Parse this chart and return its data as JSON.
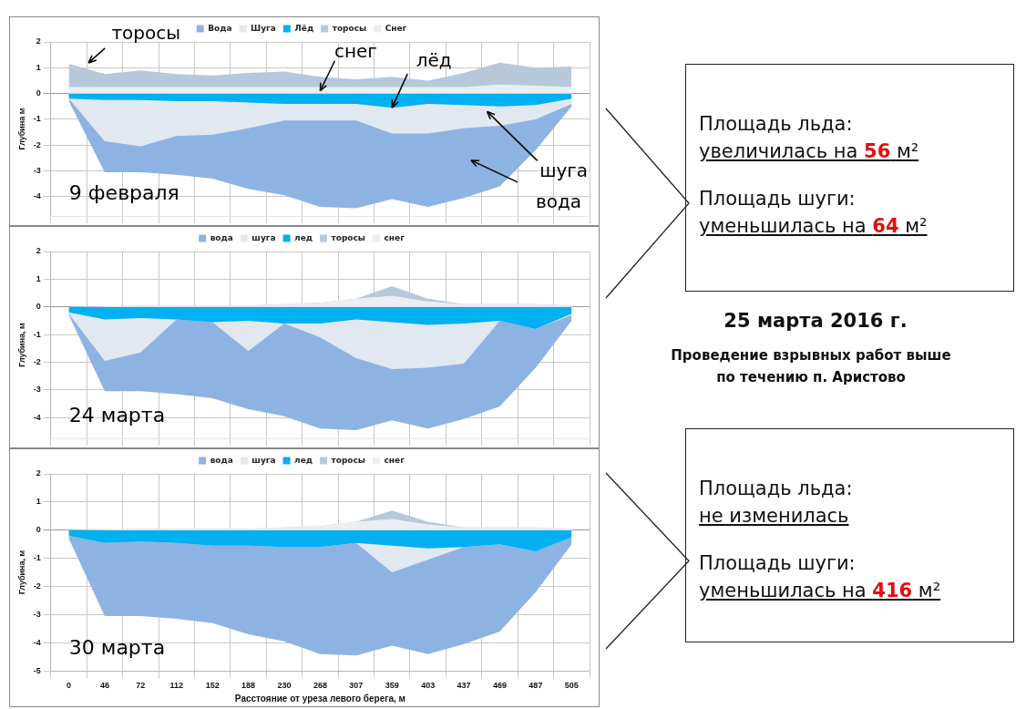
{
  "chart_data": [
    {
      "type": "area",
      "ylabel": "Глубина м",
      "categories": [
        "0",
        "46",
        "72",
        "112",
        "152",
        "188",
        "230",
        "268",
        "307",
        "359",
        "403",
        "437",
        "469",
        "487",
        "505"
      ],
      "ylim": [
        -4.75,
        2
      ],
      "yticks": [
        -4,
        -3,
        -2,
        -1,
        0,
        1,
        2
      ],
      "grid": true,
      "legend": "top",
      "tick_labels": "y",
      "series": [
        {
          "name": "Вода",
          "color": "#8db3e2",
          "values": [
            -0.3,
            -3.05,
            -3.05,
            -3.15,
            -3.3,
            -3.7,
            -3.95,
            -4.4,
            -4.45,
            -4.1,
            -4.4,
            -4.05,
            -3.6,
            -2.2,
            -0.5
          ]
        },
        {
          "name": "Шуга",
          "color": "#e2e8ef",
          "values": [
            -0.2,
            -1.85,
            -2.05,
            -1.65,
            -1.6,
            -1.35,
            -1.05,
            -1.05,
            -1.05,
            -1.55,
            -1.55,
            -1.35,
            -1.25,
            -1.0,
            -0.4
          ]
        },
        {
          "name": "Лёд",
          "color": "#00b0f0",
          "values": [
            -0.2,
            -0.25,
            -0.25,
            -0.3,
            -0.3,
            -0.35,
            -0.4,
            -0.4,
            -0.4,
            -0.55,
            -0.4,
            -0.45,
            -0.5,
            -0.45,
            -0.2
          ]
        },
        {
          "name": "торосы",
          "color": "#b8c8db",
          "values": [
            1.15,
            0.75,
            0.9,
            0.75,
            0.7,
            0.8,
            0.85,
            0.65,
            0.55,
            0.65,
            0.5,
            0.8,
            1.2,
            1.0,
            1.05
          ]
        },
        {
          "name": "Снег",
          "color": "#eceef1",
          "values": [
            0.25,
            0.25,
            0.25,
            0.25,
            0.25,
            0.25,
            0.25,
            0.25,
            0.25,
            0.25,
            0.25,
            0.25,
            0.35,
            0.3,
            0.25
          ]
        }
      ],
      "annotations": [
        "торосы",
        {
          "text": "снег",
          "x": "268",
          "y": 0.1
        },
        {
          "text": "лёд",
          "x": "359",
          "y": -0.55
        },
        "шуга",
        "вода",
        "9 февраля"
      ]
    },
    {
      "type": "area",
      "ylabel": "Глубина, м",
      "categories": [
        "0",
        "46",
        "72",
        "112",
        "152",
        "188",
        "230",
        "268",
        "307",
        "359",
        "403",
        "437",
        "469",
        "487",
        "505"
      ],
      "ylim": [
        -4.75,
        2
      ],
      "yticks": [
        -4,
        -3,
        -2,
        -1,
        0,
        1,
        2
      ],
      "grid": true,
      "legend": "top",
      "tick_labels": "y",
      "series": [
        {
          "name": "вода",
          "color": "#8db3e2",
          "values": [
            -0.3,
            -3.05,
            -3.05,
            -3.15,
            -3.3,
            -3.7,
            -3.95,
            -4.4,
            -4.45,
            -4.1,
            -4.4,
            -4.05,
            -3.6,
            -2.2,
            -0.5
          ]
        },
        {
          "name": "шуга",
          "color": "#e2e8ef",
          "values": [
            -0.25,
            -1.95,
            -1.65,
            -0.45,
            -0.55,
            -1.6,
            -0.6,
            -1.1,
            -1.85,
            -2.25,
            -2.2,
            -2.05,
            -0.5,
            -0.8,
            -0.3
          ]
        },
        {
          "name": "лед",
          "color": "#00b0f0",
          "values": [
            -0.2,
            -0.45,
            -0.4,
            -0.45,
            -0.55,
            -0.5,
            -0.6,
            -0.6,
            -0.45,
            -0.55,
            -0.65,
            -0.6,
            -0.5,
            -0.8,
            -0.25
          ]
        },
        {
          "name": "торосы",
          "color": "#b8c8db",
          "values": [
            0,
            0.02,
            0.05,
            0.05,
            0.05,
            0.05,
            0.1,
            0.15,
            0.3,
            0.75,
            0.3,
            0.1,
            0.1,
            0.1,
            0.05
          ]
        },
        {
          "name": "снег",
          "color": "#eceef1",
          "values": [
            0,
            0.02,
            0.05,
            0.05,
            0.05,
            0.05,
            0.1,
            0.15,
            0.3,
            0.4,
            0.2,
            0.1,
            0.1,
            0.1,
            0.05
          ]
        }
      ],
      "annotations": [
        "24 марта"
      ]
    },
    {
      "type": "area",
      "xlabel": "Расстояние от уреза левого берега, м",
      "ylabel": "Глубина, м",
      "categories": [
        "0",
        "46",
        "72",
        "112",
        "152",
        "188",
        "230",
        "268",
        "307",
        "359",
        "403",
        "437",
        "469",
        "487",
        "505"
      ],
      "ylim": [
        -5,
        2
      ],
      "yticks": [
        -5,
        -4,
        -3,
        -2,
        -1,
        0,
        1,
        2
      ],
      "grid": true,
      "legend": "top",
      "series": [
        {
          "name": "вода",
          "color": "#8db3e2",
          "values": [
            -0.3,
            -3.05,
            -3.05,
            -3.15,
            -3.3,
            -3.7,
            -3.95,
            -4.4,
            -4.45,
            -4.1,
            -4.4,
            -4.05,
            -3.6,
            -2.2,
            -0.5
          ]
        },
        {
          "name": "шуга",
          "color": "#e2e8ef",
          "values": [
            -0.2,
            -0.45,
            -0.4,
            -0.45,
            -0.55,
            -0.55,
            -0.6,
            -0.6,
            -0.45,
            -1.5,
            -1.05,
            -0.6,
            -0.5,
            -0.75,
            -0.25
          ]
        },
        {
          "name": "лед",
          "color": "#00b0f0",
          "values": [
            -0.2,
            -0.45,
            -0.4,
            -0.45,
            -0.55,
            -0.55,
            -0.6,
            -0.6,
            -0.45,
            -0.55,
            -0.65,
            -0.6,
            -0.5,
            -0.75,
            -0.25
          ]
        },
        {
          "name": "торосы",
          "color": "#b8c8db",
          "values": [
            0,
            0.02,
            0.05,
            0.05,
            0.05,
            0.05,
            0.1,
            0.15,
            0.3,
            0.7,
            0.3,
            0.1,
            0.1,
            0.1,
            0.05
          ]
        },
        {
          "name": "снег",
          "color": "#eceef1",
          "values": [
            0,
            0.02,
            0.05,
            0.05,
            0.05,
            0.05,
            0.1,
            0.15,
            0.3,
            0.4,
            0.2,
            0.1,
            0.1,
            0.1,
            0.05
          ]
        }
      ],
      "annotations": [
        "30 марта"
      ]
    },
    {
      "type": "other",
      "annotations": [
        "Площадь льда:",
        "увеличилась на 56 м²",
        "Площадь шуги:",
        "уменьшилась на 64 м²",
        "25 марта 2016 г.",
        "Проведение взрывных работ выше по течению п. Аристово",
        "Площадь льда:",
        "не изменилась",
        "Площадь шуги:",
        "уменьшилась на 416 м²"
      ]
    }
  ]
}
